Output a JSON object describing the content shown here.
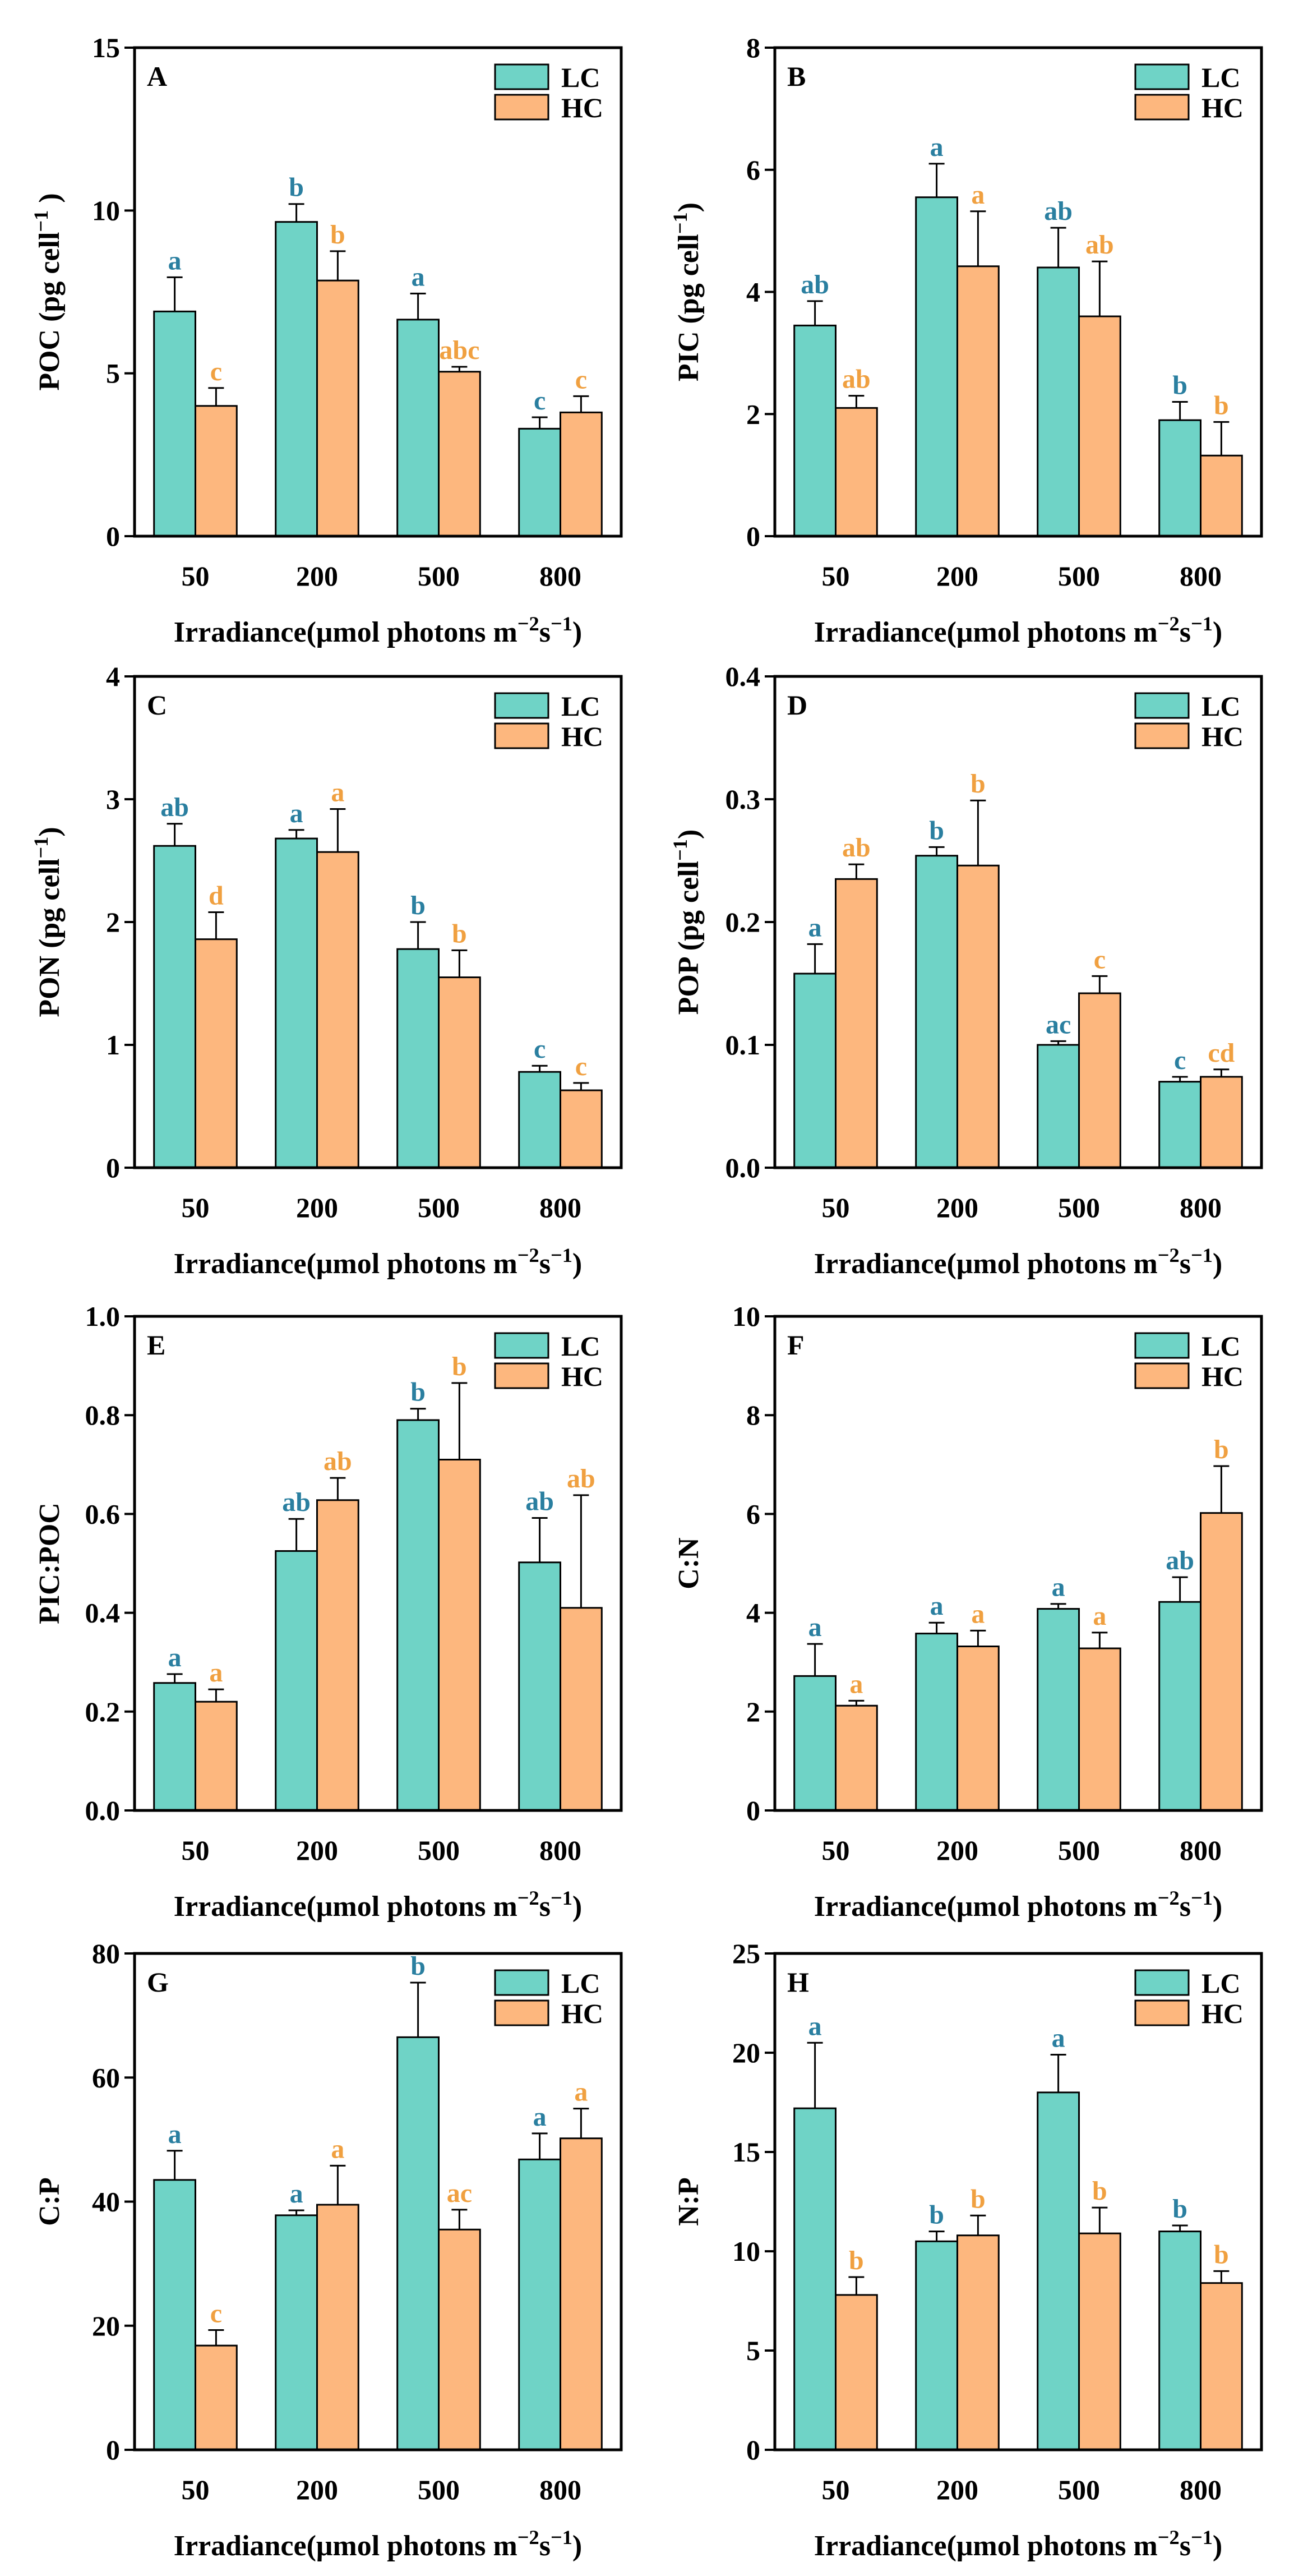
{
  "colors": {
    "LC": "#6fd3c6",
    "HC": "#fdb77e",
    "LC_letter": "#2a7fa0",
    "HC_letter": "#f0a040"
  },
  "legend": {
    "LC": "LC",
    "HC": "HC"
  },
  "chart_data": [
    {
      "id": "A",
      "type": "bar",
      "panel_label": "A",
      "ylabel": "POC (pg cell⁻¹ )",
      "xlabel": "Irradiance(μmol photons m⁻²s⁻¹)",
      "categories": [
        "50",
        "200",
        "500",
        "800"
      ],
      "ylim": [
        0,
        15
      ],
      "yticks": [
        "0",
        "5",
        "10",
        "15"
      ],
      "ytick_values": [
        0,
        5,
        10,
        15
      ],
      "series": [
        {
          "name": "LC",
          "values": [
            6.9,
            9.65,
            6.65,
            3.3
          ],
          "errors": [
            1.05,
            0.55,
            0.8,
            0.35
          ],
          "letters": [
            "a",
            "b",
            "a",
            "c"
          ]
        },
        {
          "name": "HC",
          "values": [
            4.0,
            7.85,
            5.05,
            3.8
          ],
          "errors": [
            0.55,
            0.9,
            0.15,
            0.5
          ],
          "letters": [
            "c",
            "b",
            "abc",
            "c"
          ]
        }
      ]
    },
    {
      "id": "B",
      "type": "bar",
      "panel_label": "B",
      "ylabel": "PIC (pg cell⁻¹)",
      "xlabel": "Irradiance(μmol photons m⁻²s⁻¹)",
      "categories": [
        "50",
        "200",
        "500",
        "800"
      ],
      "ylim": [
        0,
        8
      ],
      "yticks": [
        "0",
        "2",
        "4",
        "6",
        "8"
      ],
      "ytick_values": [
        0,
        2,
        4,
        6,
        8
      ],
      "series": [
        {
          "name": "LC",
          "values": [
            3.45,
            5.55,
            4.4,
            1.9
          ],
          "errors": [
            0.4,
            0.55,
            0.65,
            0.3
          ],
          "letters": [
            "ab",
            "a",
            "ab",
            "b"
          ]
        },
        {
          "name": "HC",
          "values": [
            2.1,
            4.42,
            3.6,
            1.32
          ],
          "errors": [
            0.2,
            0.9,
            0.9,
            0.55
          ],
          "letters": [
            "ab",
            "a",
            "ab",
            "b"
          ]
        }
      ]
    },
    {
      "id": "C",
      "type": "bar",
      "panel_label": "C",
      "ylabel": "PON (pg cell⁻¹)",
      "xlabel": "Irradiance(μmol photons m⁻²s⁻¹)",
      "categories": [
        "50",
        "200",
        "500",
        "800"
      ],
      "ylim": [
        0,
        4
      ],
      "yticks": [
        "0",
        "1",
        "2",
        "3",
        "4"
      ],
      "ytick_values": [
        0,
        1,
        2,
        3,
        4
      ],
      "series": [
        {
          "name": "LC",
          "values": [
            2.62,
            2.68,
            1.78,
            0.78
          ],
          "errors": [
            0.18,
            0.07,
            0.22,
            0.05
          ],
          "letters": [
            "ab",
            "a",
            "b",
            "c"
          ]
        },
        {
          "name": "HC",
          "values": [
            1.86,
            2.57,
            1.55,
            0.63
          ],
          "errors": [
            0.22,
            0.35,
            0.22,
            0.06
          ],
          "letters": [
            "d",
            "a",
            "b",
            "c"
          ]
        }
      ]
    },
    {
      "id": "D",
      "type": "bar",
      "panel_label": "D",
      "ylabel": "POP (pg cell⁻¹)",
      "xlabel": "Irradiance(μmol photons m⁻²s⁻¹)",
      "categories": [
        "50",
        "200",
        "500",
        "800"
      ],
      "ylim": [
        0,
        0.4
      ],
      "yticks": [
        "0.0",
        "0.1",
        "0.2",
        "0.3",
        "0.4"
      ],
      "ytick_values": [
        0,
        0.1,
        0.2,
        0.3,
        0.4
      ],
      "series": [
        {
          "name": "LC",
          "values": [
            0.158,
            0.254,
            0.1,
            0.07
          ],
          "errors": [
            0.024,
            0.007,
            0.003,
            0.004
          ],
          "letters": [
            "a",
            "b",
            "ac",
            "c"
          ]
        },
        {
          "name": "HC",
          "values": [
            0.235,
            0.246,
            0.142,
            0.074
          ],
          "errors": [
            0.012,
            0.053,
            0.014,
            0.006
          ],
          "letters": [
            "ab",
            "b",
            "c",
            "cd"
          ]
        }
      ]
    },
    {
      "id": "E",
      "type": "bar",
      "panel_label": "E",
      "ylabel": "PIC:POC",
      "xlabel": "Irradiance(μmol photons m⁻²s⁻¹)",
      "categories": [
        "50",
        "200",
        "500",
        "800"
      ],
      "ylim": [
        0,
        1.0
      ],
      "yticks": [
        "0.0",
        "0.2",
        "0.4",
        "0.6",
        "0.8",
        "1.0"
      ],
      "ytick_values": [
        0,
        0.2,
        0.4,
        0.6,
        0.8,
        1.0
      ],
      "series": [
        {
          "name": "LC",
          "values": [
            0.258,
            0.525,
            0.79,
            0.502
          ],
          "errors": [
            0.018,
            0.065,
            0.023,
            0.09
          ],
          "letters": [
            "a",
            "ab",
            "b",
            "ab"
          ]
        },
        {
          "name": "HC",
          "values": [
            0.22,
            0.628,
            0.71,
            0.41
          ],
          "errors": [
            0.025,
            0.045,
            0.155,
            0.228
          ],
          "letters": [
            "a",
            "ab",
            "b",
            "ab"
          ]
        }
      ]
    },
    {
      "id": "F",
      "type": "bar",
      "panel_label": "F",
      "ylabel": "C:N",
      "xlabel": "Irradiance(μmol photons m⁻²s⁻¹)",
      "categories": [
        "50",
        "200",
        "500",
        "800"
      ],
      "ylim": [
        0,
        10
      ],
      "yticks": [
        "0",
        "2",
        "4",
        "6",
        "8",
        "10"
      ],
      "ytick_values": [
        0,
        2,
        4,
        6,
        8,
        10
      ],
      "series": [
        {
          "name": "LC",
          "values": [
            2.72,
            3.58,
            4.08,
            4.22
          ],
          "errors": [
            0.65,
            0.22,
            0.1,
            0.5
          ],
          "letters": [
            "a",
            "a",
            "a",
            "ab"
          ]
        },
        {
          "name": "HC",
          "values": [
            2.12,
            3.32,
            3.28,
            6.02
          ],
          "errors": [
            0.1,
            0.32,
            0.32,
            0.95
          ],
          "letters": [
            "a",
            "a",
            "a",
            "b"
          ]
        }
      ]
    },
    {
      "id": "G",
      "type": "bar",
      "panel_label": "G",
      "ylabel": "C:P",
      "xlabel": "Irradiance(μmol photons m⁻²s⁻¹)",
      "categories": [
        "50",
        "200",
        "500",
        "800"
      ],
      "ylim": [
        0,
        80
      ],
      "yticks": [
        "0",
        "20",
        "40",
        "60",
        "80"
      ],
      "ytick_values": [
        0,
        20,
        40,
        60,
        80
      ],
      "series": [
        {
          "name": "LC",
          "values": [
            43.5,
            37.8,
            66.5,
            46.8
          ],
          "errors": [
            4.7,
            0.8,
            8.8,
            4.2
          ],
          "letters": [
            "a",
            "a",
            "b",
            "a"
          ]
        },
        {
          "name": "HC",
          "values": [
            16.8,
            39.5,
            35.5,
            50.2
          ],
          "errors": [
            2.5,
            6.3,
            3.2,
            4.8
          ],
          "letters": [
            "c",
            "a",
            "ac",
            "a"
          ]
        }
      ]
    },
    {
      "id": "H",
      "type": "bar",
      "panel_label": "H",
      "ylabel": "N:P",
      "xlabel": "Irradiance(μmol photons m⁻²s⁻¹)",
      "categories": [
        "50",
        "200",
        "500",
        "800"
      ],
      "ylim": [
        0,
        25
      ],
      "yticks": [
        "0",
        "5",
        "10",
        "15",
        "20",
        "25"
      ],
      "ytick_values": [
        0,
        5,
        10,
        15,
        20,
        25
      ],
      "series": [
        {
          "name": "LC",
          "values": [
            17.2,
            10.5,
            18.0,
            11.0
          ],
          "errors": [
            3.3,
            0.5,
            1.9,
            0.3
          ],
          "letters": [
            "a",
            "b",
            "a",
            "b"
          ]
        },
        {
          "name": "HC",
          "values": [
            7.8,
            10.8,
            10.9,
            8.4
          ],
          "errors": [
            0.9,
            1.0,
            1.3,
            0.6
          ],
          "letters": [
            "b",
            "b",
            "b",
            "b"
          ]
        }
      ]
    }
  ]
}
